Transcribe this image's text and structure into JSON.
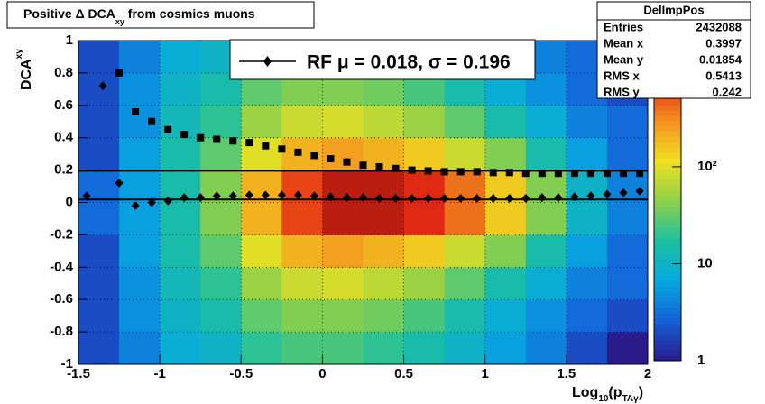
{
  "chart_data": {
    "type": "heatmap",
    "title": [
      "Positive Δ DCA",
      "xy",
      " from cosmics muons"
    ],
    "x_label": [
      "Log",
      "10",
      "(p",
      "TAγ",
      ")"
    ],
    "y_label": [
      "DCA",
      "xy"
    ],
    "xlim": [
      -1.5,
      2
    ],
    "ylim": [
      -1,
      1
    ],
    "xticks": [
      -1.5,
      -1,
      -0.5,
      0,
      0.5,
      1,
      1.5,
      2
    ],
    "yticks": [
      -1,
      -0.8,
      -0.6,
      -0.4,
      -0.2,
      0,
      0.2,
      0.4,
      0.6,
      0.8,
      1
    ],
    "grid": true,
    "x_bins": [
      -1.5,
      -1.25,
      -1,
      -0.75,
      -0.5,
      -0.25,
      0,
      0.25,
      0.5,
      0.75,
      1,
      1.25,
      1.5,
      1.75,
      2
    ],
    "y_bins": [
      -1,
      -0.8,
      -0.6,
      -0.4,
      -0.2,
      0,
      0.2,
      0.4,
      0.6,
      0.8,
      1
    ],
    "z": [
      [
        2,
        4,
        8,
        10,
        20,
        25,
        25,
        20,
        15,
        10,
        6,
        4,
        2,
        1
      ],
      [
        2,
        5,
        10,
        15,
        30,
        40,
        40,
        35,
        25,
        15,
        8,
        5,
        3,
        2
      ],
      [
        2,
        5,
        12,
        20,
        50,
        80,
        90,
        70,
        50,
        30,
        15,
        8,
        4,
        3
      ],
      [
        2,
        6,
        15,
        30,
        100,
        200,
        250,
        200,
        150,
        80,
        40,
        15,
        6,
        3
      ],
      [
        3,
        6,
        15,
        40,
        200,
        600,
        1200,
        1200,
        800,
        400,
        150,
        40,
        10,
        4
      ],
      [
        3,
        6,
        15,
        40,
        200,
        600,
        1200,
        1200,
        800,
        400,
        150,
        40,
        10,
        4
      ],
      [
        2,
        6,
        15,
        30,
        100,
        200,
        250,
        200,
        150,
        80,
        40,
        15,
        6,
        3
      ],
      [
        2,
        5,
        12,
        20,
        50,
        80,
        90,
        70,
        50,
        30,
        15,
        8,
        4,
        3
      ],
      [
        2,
        5,
        10,
        15,
        30,
        40,
        40,
        35,
        25,
        15,
        8,
        5,
        3,
        2
      ],
      [
        2,
        4,
        8,
        10,
        20,
        25,
        25,
        20,
        15,
        10,
        6,
        4,
        3,
        2
      ]
    ],
    "zlim": [
      1,
      2000
    ],
    "zlog": true,
    "zticks": [
      1,
      10,
      {
        "value": 100,
        "label": "10²"
      }
    ],
    "palette": [
      "#2a1b8a",
      "#1460d8",
      "#06a8e0",
      "#1cc0a0",
      "#8ed048",
      "#f0e020",
      "#f49020",
      "#e22a12",
      "#8c1010"
    ],
    "x": [
      -1.45,
      -1.35,
      -1.25,
      -1.15,
      -1.05,
      -0.95,
      -0.85,
      -0.75,
      -0.65,
      -0.55,
      -0.45,
      -0.35,
      -0.25,
      -0.15,
      -0.05,
      0.05,
      0.15,
      0.25,
      0.35,
      0.45,
      0.55,
      0.65,
      0.75,
      0.85,
      0.95,
      1.05,
      1.15,
      1.25,
      1.35,
      1.45,
      1.55,
      1.65,
      1.75,
      1.85,
      1.95
    ],
    "series": [
      {
        "marker": "diamond",
        "color": "#000000",
        "values": [
          0.04,
          0.72,
          0.12,
          -0.02,
          0.0,
          0.01,
          0.03,
          0.03,
          0.04,
          0.04,
          0.045,
          0.045,
          0.045,
          0.045,
          0.04,
          0.035,
          0.03,
          0.03,
          0.025,
          0.025,
          0.025,
          0.025,
          0.025,
          0.025,
          0.025,
          0.025,
          0.025,
          0.025,
          0.03,
          0.03,
          0.035,
          0.04,
          0.05,
          0.06,
          0.07
        ]
      },
      {
        "marker": "square",
        "color": "#000000",
        "values": [
          null,
          null,
          0.8,
          0.56,
          0.5,
          0.45,
          0.42,
          0.4,
          0.39,
          0.38,
          0.37,
          0.35,
          0.33,
          0.31,
          0.29,
          0.27,
          0.25,
          0.23,
          0.22,
          0.21,
          0.2,
          0.195,
          0.19,
          0.19,
          0.19,
          0.185,
          0.185,
          0.18,
          0.18,
          0.18,
          0.18,
          0.18,
          0.18,
          0.18,
          0.18
        ]
      }
    ],
    "hlines": [
      0.018,
      0.196
    ],
    "legend": "RF μ =  0.018, σ =   0.196",
    "stats": {
      "title": "DelImpPos",
      "rows": [
        [
          "Entries",
          2432088
        ],
        [
          "Mean x",
          0.3997
        ],
        [
          "Mean y",
          0.01854
        ],
        [
          "RMS x",
          0.5413
        ],
        [
          "RMS y",
          0.242
        ]
      ]
    }
  }
}
